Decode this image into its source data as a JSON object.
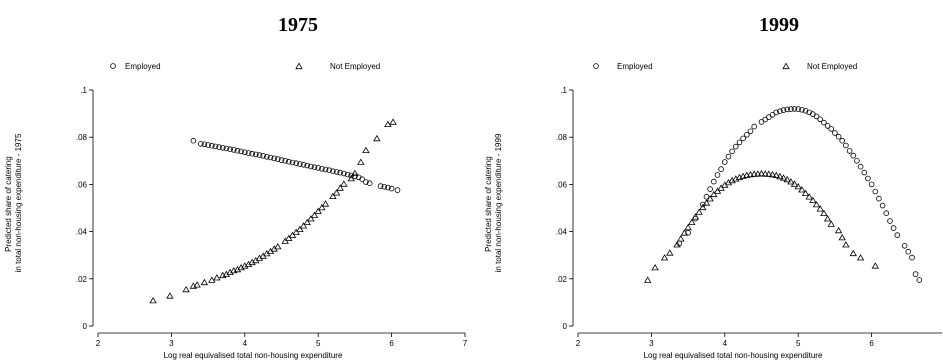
{
  "chart_data": [
    {
      "type": "scatter",
      "title": "1975",
      "xlabel": "Log real equivalised total non-housing expenditure",
      "ylabel": [
        "Predicted share of catering",
        "in total non-housing expenditure - 1975"
      ],
      "xlim": [
        2,
        7
      ],
      "ylim": [
        0,
        0.1
      ],
      "xticks": [
        "2",
        "3",
        "4",
        "5",
        "6",
        "7"
      ],
      "yticks": [
        "0",
        ".02",
        ".04",
        ".06",
        ".08",
        ".1"
      ],
      "grid": false,
      "legend_position": "top",
      "series": [
        {
          "name": "Employed",
          "marker": "circle",
          "points": [
            [
              3.3,
              0.0785
            ],
            [
              3.4,
              0.0772
            ],
            [
              3.45,
              0.077
            ],
            [
              3.5,
              0.0767
            ],
            [
              3.55,
              0.0764
            ],
            [
              3.6,
              0.0761
            ],
            [
              3.65,
              0.0758
            ],
            [
              3.7,
              0.0755
            ],
            [
              3.75,
              0.0752
            ],
            [
              3.8,
              0.0749
            ],
            [
              3.85,
              0.0746
            ],
            [
              3.9,
              0.0743
            ],
            [
              3.95,
              0.074
            ],
            [
              4.0,
              0.0736
            ],
            [
              4.05,
              0.0733
            ],
            [
              4.1,
              0.073
            ],
            [
              4.15,
              0.0727
            ],
            [
              4.2,
              0.0724
            ],
            [
              4.25,
              0.0721
            ],
            [
              4.3,
              0.0717
            ],
            [
              4.35,
              0.0714
            ],
            [
              4.4,
              0.071
            ],
            [
              4.45,
              0.0707
            ],
            [
              4.5,
              0.0703
            ],
            [
              4.55,
              0.07
            ],
            [
              4.6,
              0.0696
            ],
            [
              4.65,
              0.0693
            ],
            [
              4.7,
              0.069
            ],
            [
              4.75,
              0.0686
            ],
            [
              4.8,
              0.0683
            ],
            [
              4.85,
              0.068
            ],
            [
              4.9,
              0.0676
            ],
            [
              4.95,
              0.0673
            ],
            [
              5.0,
              0.067
            ],
            [
              5.05,
              0.0666
            ],
            [
              5.1,
              0.0663
            ],
            [
              5.15,
              0.066
            ],
            [
              5.2,
              0.0656
            ],
            [
              5.25,
              0.0653
            ],
            [
              5.3,
              0.065
            ],
            [
              5.35,
              0.0646
            ],
            [
              5.4,
              0.0642
            ],
            [
              5.45,
              0.0638
            ],
            [
              5.5,
              0.0634
            ],
            [
              5.55,
              0.063
            ],
            [
              5.6,
              0.0622
            ],
            [
              5.65,
              0.061
            ],
            [
              5.7,
              0.0605
            ],
            [
              5.85,
              0.0593
            ],
            [
              5.9,
              0.059
            ],
            [
              5.95,
              0.0587
            ],
            [
              6.0,
              0.0582
            ],
            [
              6.08,
              0.0576
            ]
          ]
        },
        {
          "name": "Not Employed",
          "marker": "triangle",
          "points": [
            [
              2.75,
              0.0108
            ],
            [
              2.98,
              0.0128
            ],
            [
              3.2,
              0.0155
            ],
            [
              3.3,
              0.017
            ],
            [
              3.35,
              0.0175
            ],
            [
              3.45,
              0.0185
            ],
            [
              3.55,
              0.0195
            ],
            [
              3.62,
              0.0205
            ],
            [
              3.7,
              0.0215
            ],
            [
              3.75,
              0.022
            ],
            [
              3.8,
              0.0228
            ],
            [
              3.85,
              0.0235
            ],
            [
              3.9,
              0.024
            ],
            [
              3.95,
              0.0248
            ],
            [
              4.0,
              0.0255
            ],
            [
              4.05,
              0.0262
            ],
            [
              4.1,
              0.027
            ],
            [
              4.15,
              0.0278
            ],
            [
              4.2,
              0.0288
            ],
            [
              4.25,
              0.0297
            ],
            [
              4.3,
              0.0307
            ],
            [
              4.35,
              0.0317
            ],
            [
              4.4,
              0.0327
            ],
            [
              4.45,
              0.0337
            ],
            [
              4.55,
              0.036
            ],
            [
              4.6,
              0.0372
            ],
            [
              4.65,
              0.0385
            ],
            [
              4.7,
              0.0398
            ],
            [
              4.75,
              0.041
            ],
            [
              4.8,
              0.0425
            ],
            [
              4.85,
              0.044
            ],
            [
              4.9,
              0.0455
            ],
            [
              4.95,
              0.047
            ],
            [
              5.0,
              0.0487
            ],
            [
              5.05,
              0.0502
            ],
            [
              5.1,
              0.0518
            ],
            [
              5.2,
              0.055
            ],
            [
              5.25,
              0.0565
            ],
            [
              5.3,
              0.0585
            ],
            [
              5.35,
              0.0602
            ],
            [
              5.45,
              0.0625
            ],
            [
              5.5,
              0.0648
            ],
            [
              5.58,
              0.0695
            ],
            [
              5.65,
              0.0745
            ],
            [
              5.8,
              0.0795
            ],
            [
              5.95,
              0.0855
            ],
            [
              6.02,
              0.0865
            ]
          ]
        }
      ]
    },
    {
      "type": "scatter",
      "title": "1999",
      "xlabel": "Log real equivalised total non-housing expenditure",
      "ylabel": [
        "Predicted share of catering",
        "in total non-housing expenditure - 1999"
      ],
      "xlim": [
        2,
        7
      ],
      "ylim": [
        0,
        0.1
      ],
      "xticks": [
        "2",
        "3",
        "4",
        "5",
        "6",
        "7"
      ],
      "yticks": [
        "0",
        ".02",
        ".04",
        ".06",
        ".08",
        ".1"
      ],
      "grid": false,
      "legend_position": "top",
      "series": [
        {
          "name": "Employed",
          "marker": "circle",
          "points": [
            [
              3.38,
              0.035
            ],
            [
              3.5,
              0.0395
            ],
            [
              3.6,
              0.0455
            ],
            [
              3.7,
              0.0515
            ],
            [
              3.75,
              0.0548
            ],
            [
              3.8,
              0.058
            ],
            [
              3.85,
              0.0612
            ],
            [
              3.9,
              0.064
            ],
            [
              3.95,
              0.0665
            ],
            [
              4.0,
              0.0695
            ],
            [
              4.05,
              0.0718
            ],
            [
              4.1,
              0.074
            ],
            [
              4.15,
              0.076
            ],
            [
              4.2,
              0.0778
            ],
            [
              4.25,
              0.0795
            ],
            [
              4.3,
              0.081
            ],
            [
              4.35,
              0.0825
            ],
            [
              4.4,
              0.0845
            ],
            [
              4.5,
              0.0865
            ],
            [
              4.55,
              0.0875
            ],
            [
              4.6,
              0.0885
            ],
            [
              4.65,
              0.0895
            ],
            [
              4.7,
              0.0905
            ],
            [
              4.75,
              0.091
            ],
            [
              4.8,
              0.0915
            ],
            [
              4.85,
              0.0918
            ],
            [
              4.9,
              0.0919
            ],
            [
              4.95,
              0.092
            ],
            [
              5.0,
              0.0919
            ],
            [
              5.05,
              0.0916
            ],
            [
              5.1,
              0.0912
            ],
            [
              5.15,
              0.0905
            ],
            [
              5.2,
              0.0898
            ],
            [
              5.25,
              0.0888
            ],
            [
              5.3,
              0.0876
            ],
            [
              5.35,
              0.0862
            ],
            [
              5.4,
              0.0848
            ],
            [
              5.45,
              0.0835
            ],
            [
              5.5,
              0.0818
            ],
            [
              5.55,
              0.0802
            ],
            [
              5.6,
              0.0785
            ],
            [
              5.65,
              0.0765
            ],
            [
              5.7,
              0.0742
            ],
            [
              5.75,
              0.0722
            ],
            [
              5.8,
              0.07
            ],
            [
              5.85,
              0.0675
            ],
            [
              5.9,
              0.065
            ],
            [
              5.95,
              0.0625
            ],
            [
              6.0,
              0.06
            ],
            [
              6.05,
              0.057
            ],
            [
              6.1,
              0.054
            ],
            [
              6.15,
              0.051
            ],
            [
              6.2,
              0.0478
            ],
            [
              6.25,
              0.0445
            ],
            [
              6.3,
              0.0415
            ],
            [
              6.35,
              0.0385
            ],
            [
              6.45,
              0.034
            ],
            [
              6.5,
              0.0315
            ],
            [
              6.55,
              0.029
            ],
            [
              6.6,
              0.022
            ],
            [
              6.65,
              0.0195
            ]
          ]
        },
        {
          "name": "Not Employed",
          "marker": "triangle",
          "points": [
            [
              2.95,
              0.0195
            ],
            [
              3.05,
              0.0248
            ],
            [
              3.18,
              0.029
            ],
            [
              3.25,
              0.031
            ],
            [
              3.35,
              0.0345
            ],
            [
              3.4,
              0.037
            ],
            [
              3.45,
              0.0395
            ],
            [
              3.5,
              0.0418
            ],
            [
              3.55,
              0.044
            ],
            [
              3.6,
              0.0463
            ],
            [
              3.65,
              0.0483
            ],
            [
              3.7,
              0.0503
            ],
            [
              3.75,
              0.0522
            ],
            [
              3.8,
              0.054
            ],
            [
              3.85,
              0.0558
            ],
            [
              3.9,
              0.0572
            ],
            [
              3.95,
              0.0585
            ],
            [
              4.0,
              0.0598
            ],
            [
              4.05,
              0.0608
            ],
            [
              4.1,
              0.0617
            ],
            [
              4.15,
              0.0624
            ],
            [
              4.2,
              0.063
            ],
            [
              4.25,
              0.0635
            ],
            [
              4.3,
              0.0639
            ],
            [
              4.35,
              0.0642
            ],
            [
              4.4,
              0.0644
            ],
            [
              4.45,
              0.0645
            ],
            [
              4.5,
              0.0646
            ],
            [
              4.55,
              0.0645
            ],
            [
              4.6,
              0.0644
            ],
            [
              4.65,
              0.0642
            ],
            [
              4.7,
              0.0639
            ],
            [
              4.75,
              0.0634
            ],
            [
              4.8,
              0.0628
            ],
            [
              4.85,
              0.0621
            ],
            [
              4.9,
              0.0612
            ],
            [
              4.95,
              0.0602
            ],
            [
              5.0,
              0.0591
            ],
            [
              5.05,
              0.0578
            ],
            [
              5.1,
              0.0563
            ],
            [
              5.15,
              0.0548
            ],
            [
              5.2,
              0.0533
            ],
            [
              5.25,
              0.0515
            ],
            [
              5.3,
              0.0497
            ],
            [
              5.35,
              0.0478
            ],
            [
              5.4,
              0.0455
            ],
            [
              5.45,
              0.0432
            ],
            [
              5.55,
              0.0405
            ],
            [
              5.6,
              0.0375
            ],
            [
              5.65,
              0.0345
            ],
            [
              5.75,
              0.0308
            ],
            [
              5.85,
              0.029
            ],
            [
              6.05,
              0.0255
            ]
          ]
        }
      ]
    }
  ]
}
